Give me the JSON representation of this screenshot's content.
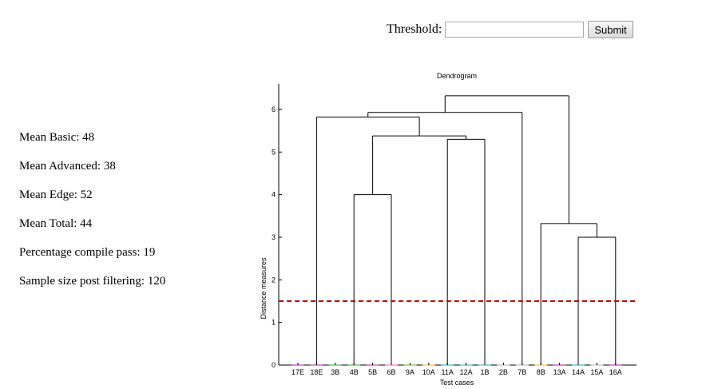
{
  "form": {
    "threshold_label": "Threshold:",
    "threshold_value": "",
    "submit_label": "Submit"
  },
  "stats": [
    {
      "label": "Mean Basic",
      "value": "48"
    },
    {
      "label": "Mean Advanced",
      "value": "38"
    },
    {
      "label": "Mean Edge",
      "value": "52"
    },
    {
      "label": "Mean Total",
      "value": "44"
    },
    {
      "label": "Percentage compile pass",
      "value": "19"
    },
    {
      "label": "Sample size post filtering",
      "value": "120"
    }
  ],
  "chart_data": {
    "type": "dendrogram",
    "title": "Dendrogram",
    "xlabel": "Test cases",
    "ylabel": "Distance measures",
    "ylim": [
      0,
      6.6
    ],
    "yticks": [
      0,
      1,
      2,
      3,
      4,
      5,
      6
    ],
    "leaves": [
      "17E",
      "18E",
      "3B",
      "4B",
      "5B",
      "6B",
      "9A",
      "10A",
      "11A",
      "12A",
      "1B",
      "2B",
      "7B",
      "8B",
      "13A",
      "14A",
      "15A",
      "16A"
    ],
    "leaf_colors": [
      "#cc66cc",
      "#cc66cc",
      "#66cc66",
      "#66cc66",
      "#cc66cc",
      "#ff99cc",
      "#99cc66",
      "#ffcc66",
      "#66cccc",
      "#66cccc",
      "#66cccc",
      "#cccccc",
      "#cccccc",
      "#ffcc66",
      "#cc66cc",
      "#66cccc",
      "#cccccc",
      "#cc66cc"
    ],
    "merges": [
      {
        "left": {
          "leaf": 3
        },
        "right": {
          "leaf": 5
        },
        "height": 4.0
      },
      {
        "left": {
          "leaf": 8
        },
        "right": {
          "leaf": 10
        },
        "height": 5.3
      },
      {
        "left": {
          "leaf": 15
        },
        "right": {
          "leaf": 17
        },
        "height": 3.0
      },
      {
        "left": {
          "leaf": 13
        },
        "right": {
          "node": 2
        },
        "height": 3.32
      },
      {
        "left": {
          "node": 0
        },
        "right": {
          "node": 1
        },
        "height": 5.38
      },
      {
        "left": {
          "leaf": 1
        },
        "right": {
          "node": 4
        },
        "height": 5.82
      },
      {
        "left": {
          "node": 5
        },
        "right": {
          "leaf": 12
        },
        "height": 5.93
      },
      {
        "left": {
          "node": 6
        },
        "right": {
          "node": 3
        },
        "height": 6.32
      }
    ],
    "threshold_line": {
      "value": 1.5,
      "color": "#cc0000",
      "style": "dashed"
    }
  }
}
